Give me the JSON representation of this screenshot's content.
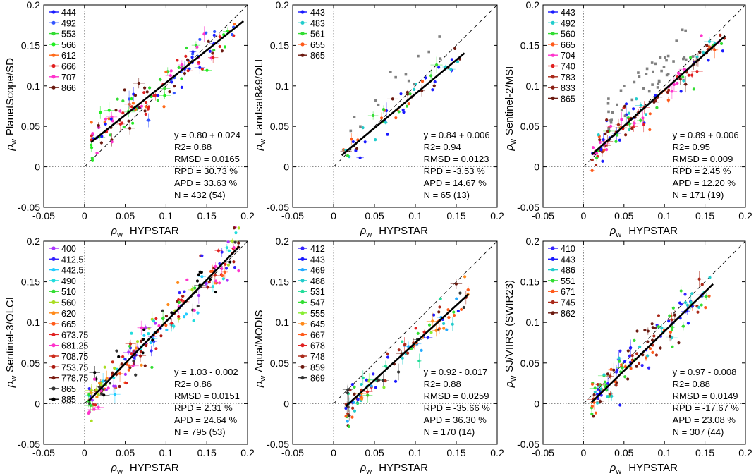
{
  "figure": {
    "common_xlabel_prefix": "ρ",
    "common_xlabel_sub": "w",
    "common_xlabel": "HYPSTAR",
    "ylabel_prefix": "ρ",
    "ylabel_sub": "w"
  },
  "chart_data": [
    {
      "type": "scatter",
      "sensor": "PlanetScope/SD",
      "ylabel": "PlanetScope/SD",
      "xlim": [
        -0.05,
        0.2
      ],
      "ylim": [
        -0.05,
        0.2
      ],
      "xticks": [
        "-0.05",
        "0",
        "0.05",
        "0.1",
        "0.15",
        "0.2"
      ],
      "yticks": [
        "-0.05",
        "0",
        "0.05",
        "0.1",
        "0.15",
        "0.2"
      ],
      "legend": [
        {
          "label": "444",
          "color": "#1a1aff"
        },
        {
          "label": "492",
          "color": "#3355ff"
        },
        {
          "label": "553",
          "color": "#33dd33"
        },
        {
          "label": "566",
          "color": "#22ee22"
        },
        {
          "label": "612",
          "color": "#ff6a1a"
        },
        {
          "label": "666",
          "color": "#e02020"
        },
        {
          "label": "707",
          "color": "#ff33cc"
        },
        {
          "label": "866",
          "color": "#6b1a10"
        }
      ],
      "fit": {
        "slope": 0.8,
        "intercept": 0.024,
        "x_range": [
          0.008,
          0.195
        ]
      },
      "cluster": {
        "x_range": [
          0.008,
          0.185
        ],
        "spread": 0.012,
        "n": 150
      },
      "stats": [
        "y = 0.80 + 0.024",
        "R2= 0.88",
        "RMSD = 0.0165",
        "RPD = 30.73 %",
        "APD = 33.63 %",
        "N = 432 (54)"
      ]
    },
    {
      "type": "scatter",
      "sensor": "Landsat8&9/OLI",
      "ylabel": "Landsat8&9/OLI",
      "xlim": [
        -0.05,
        0.2
      ],
      "ylim": [
        -0.05,
        0.2
      ],
      "xticks": [
        "-0.05",
        "0",
        "0.05",
        "0.1",
        "0.15",
        "0.2"
      ],
      "yticks": [
        "-0.05",
        "0",
        "0.05",
        "0.1",
        "0.15",
        "0.2"
      ],
      "legend": [
        {
          "label": "443",
          "color": "#1a1aff"
        },
        {
          "label": "483",
          "color": "#22cccc"
        },
        {
          "label": "561",
          "color": "#33dd33"
        },
        {
          "label": "655",
          "color": "#ff5a1a"
        },
        {
          "label": "865",
          "color": "#6b1a10"
        }
      ],
      "fit": {
        "slope": 0.84,
        "intercept": 0.006,
        "x_range": [
          0.01,
          0.16
        ]
      },
      "cluster": {
        "x_range": [
          0.01,
          0.16
        ],
        "spread": 0.01,
        "n": 55
      },
      "stats": [
        "y = 0.84 + 0.006",
        "R2= 0.94",
        "RMSD = 0.0123",
        "RPD = -3.53 %",
        "APD = 14.67 %",
        "N = 65 (13)"
      ]
    },
    {
      "type": "scatter",
      "sensor": "Sentinel-2/MSI",
      "ylabel": "Sentinel-2/MSI",
      "xlim": [
        -0.05,
        0.2
      ],
      "ylim": [
        -0.05,
        0.2
      ],
      "xticks": [
        "-0.05",
        "0",
        "0.05",
        "0.1",
        "0.15",
        "0.2"
      ],
      "yticks": [
        "-0.05",
        "0",
        "0.05",
        "0.1",
        "0.15",
        "0.2"
      ],
      "legend": [
        {
          "label": "443",
          "color": "#1a1aff"
        },
        {
          "label": "492",
          "color": "#22cccc"
        },
        {
          "label": "560",
          "color": "#33dd33"
        },
        {
          "label": "665",
          "color": "#ff5a1a"
        },
        {
          "label": "704",
          "color": "#ff33cc"
        },
        {
          "label": "740",
          "color": "#e02020"
        },
        {
          "label": "783",
          "color": "#aa2a1a"
        },
        {
          "label": "833",
          "color": "#8a1e12"
        },
        {
          "label": "865",
          "color": "#6b1a10"
        }
      ],
      "fit": {
        "slope": 0.89,
        "intercept": 0.006,
        "x_range": [
          0.01,
          0.175
        ]
      },
      "cluster": {
        "x_range": [
          0.01,
          0.175
        ],
        "spread": 0.011,
        "n": 130
      },
      "stats": [
        "y = 0.89 + 0.006",
        "R2= 0.95",
        "RMSD = 0.009",
        "RPD = 2.45 %",
        "APD = 12.20 %",
        "N = 171 (19)"
      ]
    },
    {
      "type": "scatter",
      "sensor": "Sentinel-3/OLCI",
      "ylabel": "Sentinel-3/OLCI",
      "xlim": [
        -0.05,
        0.2
      ],
      "ylim": [
        -0.05,
        0.2
      ],
      "xticks": [
        "-0.05",
        "0",
        "0.05",
        "0.1",
        "0.15",
        "0.2"
      ],
      "yticks": [
        "-0.05",
        "0",
        "0.05",
        "0.1",
        "0.15",
        "0.2"
      ],
      "legend": [
        {
          "label": "400",
          "color": "#aa33ff"
        },
        {
          "label": "412.5",
          "color": "#3322ff"
        },
        {
          "label": "442.5",
          "color": "#22ccff"
        },
        {
          "label": "490",
          "color": "#22dddd"
        },
        {
          "label": "510",
          "color": "#33dd33"
        },
        {
          "label": "560",
          "color": "#aadd22"
        },
        {
          "label": "620",
          "color": "#ff8a1a"
        },
        {
          "label": "665",
          "color": "#ff5a1a"
        },
        {
          "label": "673.75",
          "color": "#e02020"
        },
        {
          "label": "681.25",
          "color": "#ff33cc"
        },
        {
          "label": "708.75",
          "color": "#cc2a1a"
        },
        {
          "label": "753.75",
          "color": "#aa1a10"
        },
        {
          "label": "778.75",
          "color": "#7a1a10"
        },
        {
          "label": "865",
          "color": "#333333"
        },
        {
          "label": "885",
          "color": "#000000"
        }
      ],
      "fit": {
        "slope": 1.03,
        "intercept": -0.002,
        "x_range": [
          0.005,
          0.19
        ]
      },
      "cluster": {
        "x_range": [
          0.005,
          0.19
        ],
        "spread": 0.014,
        "n": 230
      },
      "stats": [
        "y = 1.03 - 0.002",
        "R2= 0.86",
        "RMSD = 0.0151",
        "RPD = 2.31 %",
        "APD = 24.64 %",
        "N = 795 (53)"
      ]
    },
    {
      "type": "scatter",
      "sensor": "Aqua/MODIS",
      "ylabel": "Aqua/MODIS",
      "xlim": [
        -0.05,
        0.2
      ],
      "ylim": [
        -0.05,
        0.2
      ],
      "xticks": [
        "-0.05",
        "0",
        "0.05",
        "0.1",
        "0.15",
        "0.2"
      ],
      "yticks": [
        "-0.05",
        "0",
        "0.05",
        "0.1",
        "0.15",
        "0.2"
      ],
      "legend": [
        {
          "label": "412",
          "color": "#3322ff"
        },
        {
          "label": "443",
          "color": "#1a1aff"
        },
        {
          "label": "469",
          "color": "#22aaff"
        },
        {
          "label": "488",
          "color": "#22cccc"
        },
        {
          "label": "531",
          "color": "#22dd99"
        },
        {
          "label": "547",
          "color": "#33dd33"
        },
        {
          "label": "555",
          "color": "#88ee33"
        },
        {
          "label": "645",
          "color": "#ff8a1a"
        },
        {
          "label": "667",
          "color": "#ff5a1a"
        },
        {
          "label": "678",
          "color": "#e02020"
        },
        {
          "label": "748",
          "color": "#aa2a1a"
        },
        {
          "label": "859",
          "color": "#6b1a10"
        },
        {
          "label": "869",
          "color": "#333333"
        }
      ],
      "fit": {
        "slope": 0.92,
        "intercept": -0.017,
        "x_range": [
          0.015,
          0.165
        ]
      },
      "cluster": {
        "x_range": [
          0.015,
          0.165
        ],
        "spread": 0.012,
        "n": 120
      },
      "stats": [
        "y = 0.92 - 0.017",
        "R2= 0.88",
        "RMSD = 0.0259",
        "RPD = -35.66 %",
        "APD = 36.30 %",
        "N = 170 (14)"
      ]
    },
    {
      "type": "scatter",
      "sensor": "SJ/VIIRS (SWIR23)",
      "ylabel": "SJ/VIIRS  (SWIR23)",
      "xlim": [
        -0.05,
        0.2
      ],
      "ylim": [
        -0.05,
        0.2
      ],
      "xticks": [
        "-0.05",
        "0",
        "0.05",
        "0.1",
        "0.15",
        "0.2"
      ],
      "yticks": [
        "-0.05",
        "0",
        "0.05",
        "0.1",
        "0.15",
        "0.2"
      ],
      "legend": [
        {
          "label": "410",
          "color": "#3322ff"
        },
        {
          "label": "443",
          "color": "#1a1aff"
        },
        {
          "label": "486",
          "color": "#22cccc"
        },
        {
          "label": "551",
          "color": "#33dd33"
        },
        {
          "label": "671",
          "color": "#ff5a1a"
        },
        {
          "label": "745",
          "color": "#aa2a1a"
        },
        {
          "label": "862",
          "color": "#6b1a10"
        }
      ],
      "fit": {
        "slope": 0.97,
        "intercept": -0.008,
        "x_range": [
          0.01,
          0.16
        ]
      },
      "cluster": {
        "x_range": [
          0.01,
          0.16
        ],
        "spread": 0.012,
        "n": 150
      },
      "stats": [
        "y = 0.97 - 0.008",
        "R2= 0.88",
        "RMSD = 0.0149",
        "RPD = -17.67 %",
        "APD = 23.08 %",
        "N = 307 (44)"
      ]
    }
  ]
}
